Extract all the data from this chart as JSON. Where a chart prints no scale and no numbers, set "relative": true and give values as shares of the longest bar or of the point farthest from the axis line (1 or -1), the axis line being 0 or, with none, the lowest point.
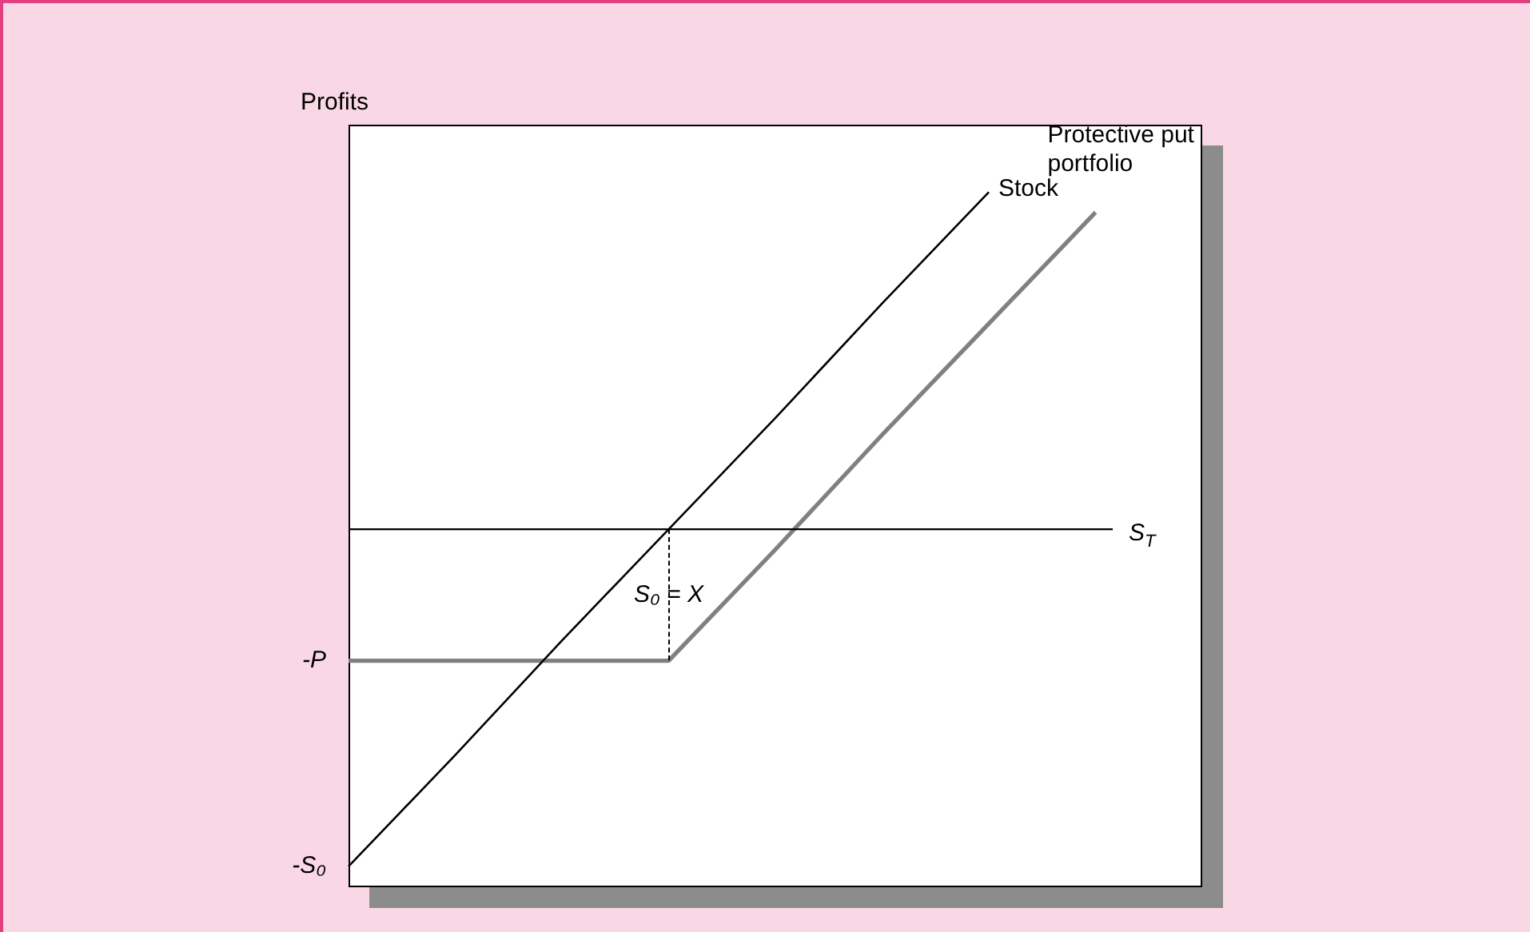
{
  "chart_data": {
    "type": "line",
    "relative": true,
    "ylabel": "Profits",
    "xlabel": "S$_{T}$",
    "categories": [
      null,
      null,
      null,
      null,
      null,
      null,
      null,
      null,
      null
    ],
    "series": [
      {
        "name": "Stock",
        "color": "#000000",
        "values": [
          -1,
          -0.67,
          -0.33,
          0,
          0.33,
          0.67,
          1,
          null,
          null
        ]
      },
      {
        "name": "Protective put portfolio",
        "color": "#808080",
        "values": [
          -0.39,
          -0.39,
          -0.39,
          -0.39,
          -0.06,
          0.28,
          0.61,
          0.94,
          null
        ]
      }
    ],
    "annotations": [
      "-P",
      "-S₀",
      "S₀ = X"
    ],
    "grid": false,
    "legend": false,
    "marker": "none",
    "line_style": "solid"
  }
}
